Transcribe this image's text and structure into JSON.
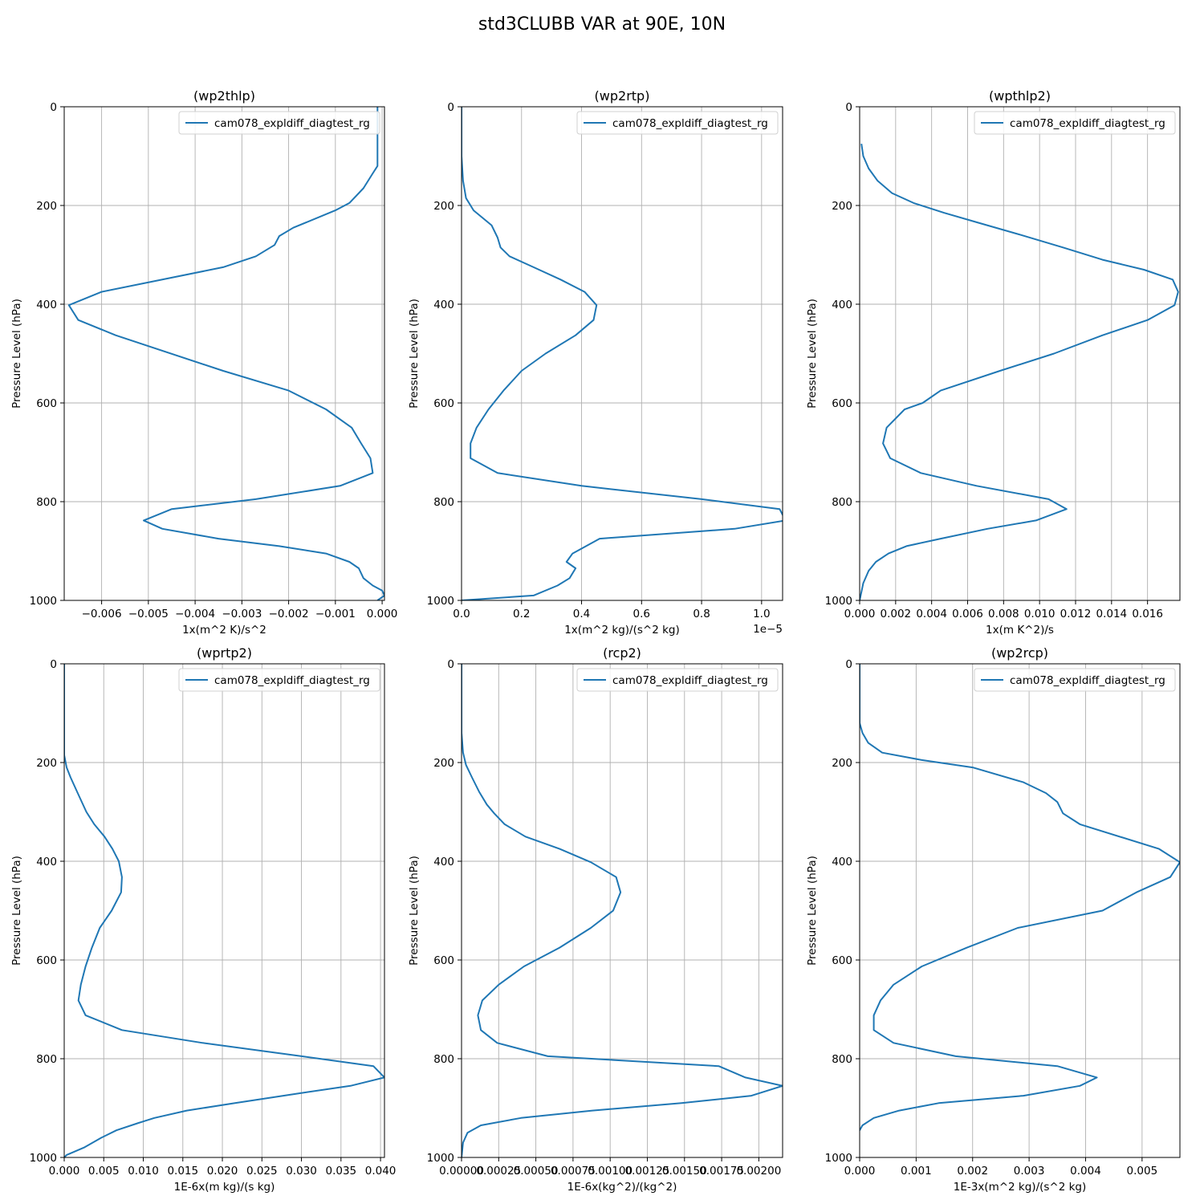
{
  "figure": {
    "suptitle": "std3CLUBB VAR at 90E, 10N",
    "ylabel": "Pressure Level (hPa)",
    "legend_label": "cam078_expldiff_diagtest_rg",
    "line_color": "#1f77b4"
  },
  "chart_data": [
    {
      "type": "line",
      "title": "(wp2thlp)",
      "xlabel": "1x(m^2 K)/s^2",
      "ylabel": "Pressure Level (hPa)",
      "legend": "cam078_expldiff_diagtest_rg",
      "xlim": [
        -0.0068,
        5e-05
      ],
      "ylim": [
        1000,
        0
      ],
      "xticks": [
        -0.006,
        -0.005,
        -0.004,
        -0.003,
        -0.002,
        -0.001,
        0.0
      ],
      "xtick_labels": [
        "−0.006",
        "−0.005",
        "−0.004",
        "−0.003",
        "−0.002",
        "−0.001",
        "0.000"
      ],
      "offset_label": "",
      "yticks": [
        0,
        200,
        400,
        600,
        800,
        1000
      ],
      "ytick_labels": [
        "0",
        "200",
        "400",
        "600",
        "800",
        "1000"
      ],
      "grid": true,
      "x": [
        -0.0001,
        -0.0001,
        -0.0001,
        -0.0001,
        -0.0002,
        -0.0004,
        -0.0007,
        -0.001,
        -0.0019,
        -0.0022,
        -0.0023,
        -0.0027,
        -0.0034,
        -0.006,
        -0.0067,
        -0.0065,
        -0.0057,
        -0.0034,
        -0.002,
        -0.0012,
        -0.00065,
        -0.00045,
        -0.00025,
        -0.0002,
        -0.0009,
        -0.0027,
        -0.0045,
        -0.0051,
        -0.0047,
        -0.0035,
        -0.0022,
        -0.0012,
        -0.0007,
        -0.0005,
        -0.0004,
        -0.0002,
        0.0,
        5e-05,
        -0.0001
      ],
      "y": [
        0,
        50,
        100,
        120,
        135,
        165,
        195,
        210,
        245,
        262,
        280,
        303,
        325,
        375,
        402,
        432,
        463,
        535,
        575,
        613,
        650,
        682,
        712,
        742,
        768,
        795,
        815,
        838,
        855,
        875,
        890,
        905,
        922,
        935,
        955,
        970,
        980,
        990,
        1000
      ]
    },
    {
      "type": "line",
      "title": "(wp2rtp)",
      "xlabel": "1x(m^2 kg)/(s^2 kg)",
      "ylabel": "Pressure Level (hPa)",
      "legend": "cam078_expldiff_diagtest_rg",
      "xlim": [
        0.0,
        1.07
      ],
      "ylim": [
        1000,
        0
      ],
      "xticks": [
        0.0,
        0.2,
        0.4,
        0.6,
        0.8,
        1.0
      ],
      "xtick_labels": [
        "0.0",
        "0.2",
        "0.4",
        "0.6",
        "0.8",
        "1.0"
      ],
      "offset_label": "1e−5",
      "yticks": [
        0,
        200,
        400,
        600,
        800,
        1000
      ],
      "ytick_labels": [
        "0",
        "200",
        "400",
        "600",
        "800",
        "1000"
      ],
      "grid": true,
      "x": [
        0.0,
        0.0,
        0.0,
        0.005,
        0.015,
        0.04,
        0.1,
        0.12,
        0.13,
        0.16,
        0.24,
        0.33,
        0.41,
        0.45,
        0.44,
        0.38,
        0.28,
        0.2,
        0.14,
        0.09,
        0.05,
        0.03,
        0.03,
        0.12,
        0.4,
        0.8,
        1.06,
        1.08,
        0.91,
        0.46,
        0.37,
        0.35,
        0.38,
        0.36,
        0.32,
        0.24,
        0.0
      ],
      "y": [
        0,
        50,
        100,
        150,
        185,
        210,
        240,
        265,
        285,
        303,
        325,
        350,
        375,
        402,
        432,
        463,
        500,
        535,
        575,
        613,
        650,
        682,
        712,
        742,
        768,
        795,
        815,
        838,
        855,
        875,
        905,
        922,
        935,
        955,
        970,
        990,
        1000
      ]
    },
    {
      "type": "line",
      "title": "(wpthlp2)",
      "xlabel": "1x(m K^2)/s",
      "ylabel": "Pressure Level (hPa)",
      "legend": "cam078_expldiff_diagtest_rg",
      "xlim": [
        0.0,
        0.0178
      ],
      "ylim": [
        1000,
        0
      ],
      "xticks": [
        0.0,
        0.002,
        0.004,
        0.006,
        0.008,
        0.01,
        0.012,
        0.014,
        0.016
      ],
      "xtick_labels": [
        "0.000",
        "0.002",
        "0.004",
        "0.006",
        "0.008",
        "0.010",
        "0.012",
        "0.014",
        "0.016"
      ],
      "offset_label": "",
      "yticks": [
        0,
        200,
        400,
        600,
        800,
        1000
      ],
      "ytick_labels": [
        "0",
        "200",
        "400",
        "600",
        "800",
        "1000"
      ],
      "grid": true,
      "x": [
        0.0001,
        0.0002,
        0.0005,
        0.001,
        0.0018,
        0.003,
        0.0047,
        0.0066,
        0.009,
        0.0113,
        0.0135,
        0.0158,
        0.0174,
        0.0177,
        0.0175,
        0.016,
        0.0135,
        0.0108,
        0.0078,
        0.0045,
        0.0035,
        0.0025,
        0.0015,
        0.0013,
        0.0017,
        0.0034,
        0.0065,
        0.0105,
        0.0115,
        0.0098,
        0.0071,
        0.0045,
        0.0026,
        0.0016,
        0.0009,
        0.0005,
        0.0002,
        0.0
      ],
      "y": [
        75,
        100,
        125,
        150,
        175,
        195,
        215,
        235,
        260,
        285,
        310,
        330,
        350,
        375,
        402,
        432,
        463,
        500,
        535,
        575,
        600,
        613,
        650,
        682,
        712,
        742,
        768,
        795,
        815,
        838,
        855,
        875,
        890,
        905,
        922,
        940,
        965,
        1000
      ]
    },
    {
      "type": "line",
      "title": "(wprtp2)",
      "xlabel": "1E-6x(m kg)/(s kg)",
      "ylabel": "Pressure Level (hPa)",
      "legend": "cam078_expldiff_diagtest_rg",
      "xlim": [
        0.0,
        0.0405
      ],
      "ylim": [
        1000,
        0
      ],
      "xticks": [
        0.0,
        0.005,
        0.01,
        0.015,
        0.02,
        0.025,
        0.03,
        0.035,
        0.04
      ],
      "xtick_labels": [
        "0.000",
        "0.005",
        "0.010",
        "0.015",
        "0.020",
        "0.025",
        "0.030",
        "0.035",
        "0.040"
      ],
      "offset_label": "",
      "yticks": [
        0,
        200,
        400,
        600,
        800,
        1000
      ],
      "ytick_labels": [
        "0",
        "200",
        "400",
        "600",
        "800",
        "1000"
      ],
      "grid": true,
      "x": [
        0.0,
        0.0,
        0.0003,
        0.0008,
        0.0018,
        0.0028,
        0.0038,
        0.0051,
        0.0061,
        0.0069,
        0.0073,
        0.0072,
        0.006,
        0.0045,
        0.0035,
        0.0027,
        0.0021,
        0.0018,
        0.0027,
        0.0073,
        0.0175,
        0.03,
        0.0391,
        0.0405,
        0.0362,
        0.0298,
        0.0216,
        0.0155,
        0.0114,
        0.0094,
        0.0066,
        0.0047,
        0.0025,
        0.0003,
        0.0
      ],
      "y": [
        0,
        185,
        210,
        230,
        265,
        300,
        325,
        350,
        375,
        400,
        432,
        463,
        500,
        535,
        575,
        613,
        650,
        682,
        712,
        742,
        768,
        795,
        815,
        838,
        855,
        870,
        890,
        905,
        920,
        930,
        945,
        960,
        980,
        995,
        1000
      ]
    },
    {
      "type": "line",
      "title": "(rcp2)",
      "xlabel": "1E-6x(kg^2)/(kg^2)",
      "ylabel": "Pressure Level (hPa)",
      "legend": "cam078_expldiff_diagtest_rg",
      "xlim": [
        0.0,
        0.00216
      ],
      "ylim": [
        1000,
        0
      ],
      "xticks": [
        0.0,
        0.00025,
        0.0005,
        0.00075,
        0.001,
        0.00125,
        0.0015,
        0.00175,
        0.002
      ],
      "xtick_labels": [
        "0.00000",
        "0.00025",
        "0.00050",
        "0.00075",
        "0.00100",
        "0.00125",
        "0.00150",
        "0.00175",
        "0.00200"
      ],
      "offset_label": "",
      "yticks": [
        0,
        200,
        400,
        600,
        800,
        1000
      ],
      "ytick_labels": [
        "0",
        "200",
        "400",
        "600",
        "800",
        "1000"
      ],
      "grid": true,
      "x": [
        0.0,
        0.0,
        1e-05,
        3e-05,
        7e-05,
        0.00012,
        0.00017,
        0.00022,
        0.00029,
        0.00043,
        0.00066,
        0.00087,
        0.00104,
        0.00107,
        0.00102,
        0.00087,
        0.00066,
        0.00042,
        0.00025,
        0.00014,
        0.00011,
        0.00013,
        0.00024,
        0.00058,
        0.00173,
        0.00191,
        0.00216,
        0.00195,
        0.00148,
        0.00088,
        0.0004,
        0.00013,
        4e-05,
        1e-05,
        0.0
      ],
      "y": [
        0,
        140,
        180,
        205,
        230,
        260,
        285,
        303,
        325,
        350,
        375,
        402,
        432,
        463,
        500,
        535,
        575,
        613,
        650,
        682,
        712,
        742,
        768,
        795,
        815,
        838,
        855,
        875,
        890,
        905,
        920,
        935,
        950,
        970,
        1000
      ]
    },
    {
      "type": "line",
      "title": "(wp2rcp)",
      "xlabel": "1E-3x(m^2 kg)/(s^2 kg)",
      "ylabel": "Pressure Level (hPa)",
      "legend": "cam078_expldiff_diagtest_rg",
      "xlim": [
        0.0,
        0.00567
      ],
      "ylim": [
        1000,
        0
      ],
      "xticks": [
        0.0,
        0.001,
        0.002,
        0.003,
        0.004,
        0.005
      ],
      "xtick_labels": [
        "0.000",
        "0.001",
        "0.002",
        "0.003",
        "0.004",
        "0.005"
      ],
      "offset_label": "",
      "yticks": [
        0,
        200,
        400,
        600,
        800,
        1000
      ],
      "ytick_labels": [
        "0",
        "200",
        "400",
        "600",
        "800",
        "1000"
      ],
      "grid": true,
      "x": [
        0.0,
        0.0,
        5e-05,
        0.00015,
        0.0004,
        0.0011,
        0.002,
        0.0029,
        0.0033,
        0.0035,
        0.0036,
        0.0039,
        0.0053,
        0.00567,
        0.0055,
        0.0049,
        0.0043,
        0.0028,
        0.0019,
        0.0011,
        0.0006,
        0.00037,
        0.00025,
        0.00025,
        0.0006,
        0.0017,
        0.0035,
        0.0042,
        0.0039,
        0.0029,
        0.0014,
        0.0007,
        0.00025,
        5e-05,
        0.0
      ],
      "y": [
        0,
        120,
        140,
        160,
        180,
        195,
        210,
        240,
        262,
        280,
        303,
        325,
        375,
        402,
        432,
        463,
        500,
        535,
        575,
        613,
        650,
        682,
        712,
        742,
        768,
        795,
        815,
        838,
        855,
        875,
        890,
        905,
        920,
        935,
        945
      ]
    }
  ]
}
